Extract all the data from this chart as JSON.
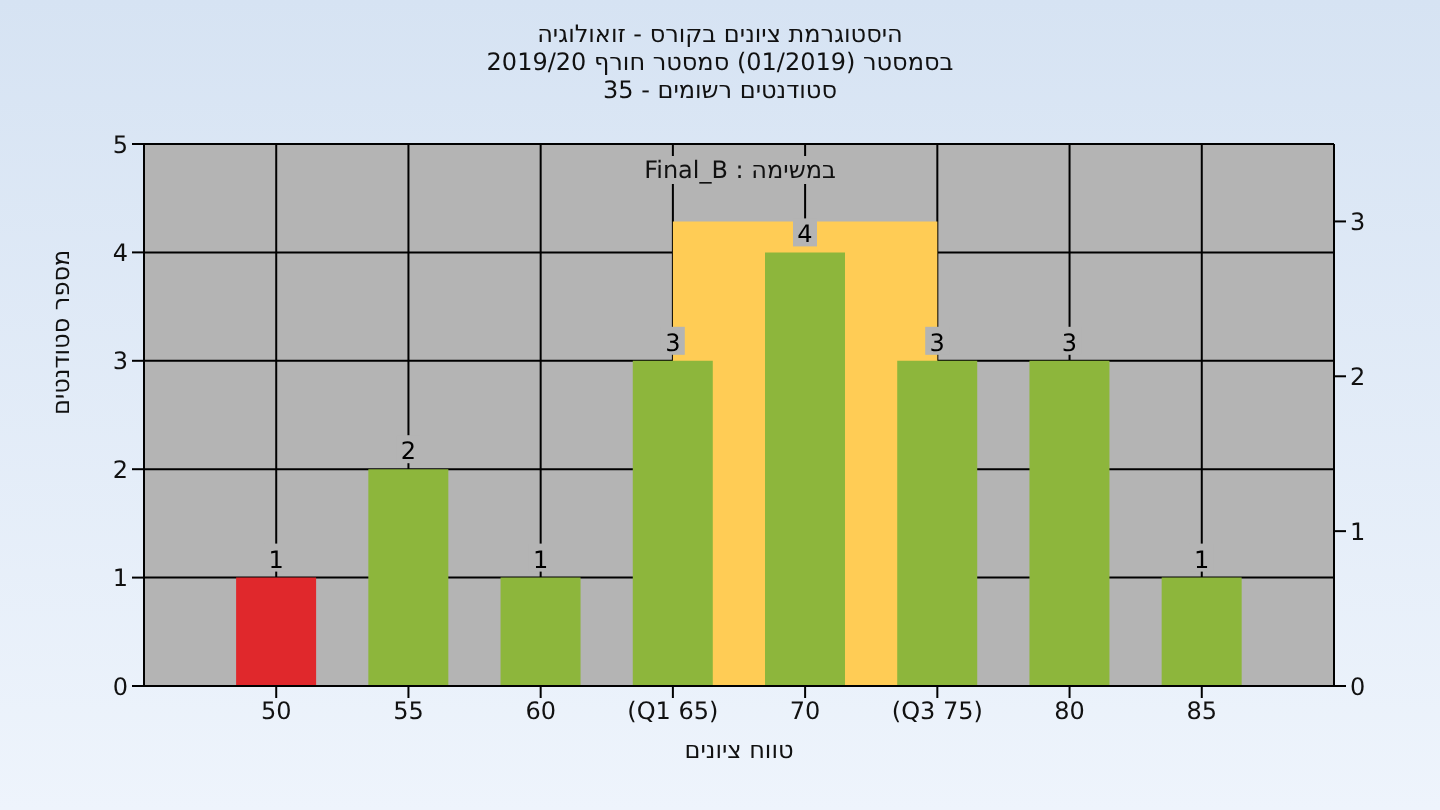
{
  "chart_data": {
    "type": "bar",
    "title": "היסטוגרמת ציונים בקורס - זואולוגיה",
    "subtitle": "בסמסטר  (01/2019)  סמסטר חורף 2019/20\nסטודנטים רשומים - 35",
    "xlabel": "טווח ציונים",
    "ylabel": "מספר סטודנטים",
    "annotations": [
      "במשימה : Final_B"
    ],
    "categories": [
      "50",
      "55",
      "60",
      "(Q1 65)",
      "70",
      "(Q3 75)",
      "80",
      "85"
    ],
    "series": [
      {
        "type": "area",
        "axis": "y2",
        "color": "#ffcc55",
        "values": [
          null,
          null,
          null,
          3,
          3,
          3,
          null,
          null
        ]
      },
      {
        "colors": [
          "#e0282c",
          "#8db63c",
          "#8db63c",
          "#8db63c",
          "#8db63c",
          "#8db63c",
          "#8db63c",
          "#8db63c"
        ],
        "values": [
          1,
          2,
          1,
          3,
          4,
          3,
          3,
          1
        ],
        "value_labels": [
          "1",
          "2",
          "1",
          "3",
          "4",
          "3",
          "3",
          "1"
        ]
      }
    ],
    "ylim": [
      0,
      5
    ],
    "yticks": [
      0,
      1,
      2,
      3,
      4,
      5
    ],
    "y2lim": [
      0,
      3.5
    ],
    "y2ticks": [
      0,
      1,
      2,
      3
    ],
    "grid": true
  }
}
